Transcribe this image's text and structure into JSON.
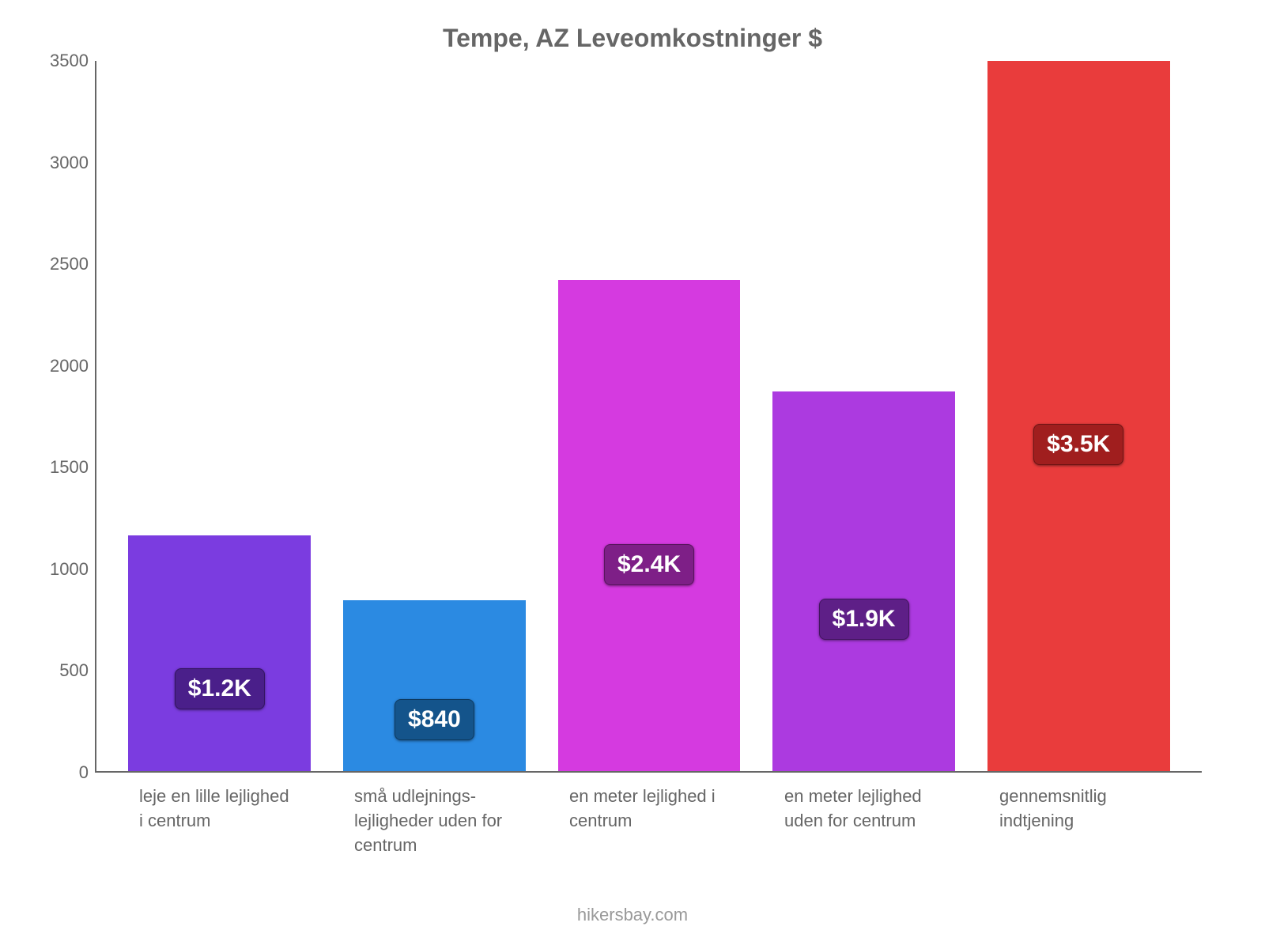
{
  "chart": {
    "type": "bar",
    "title": "Tempe, AZ Leveomkostninger $",
    "title_color": "#666666",
    "title_fontsize": 32,
    "background_color": "#ffffff",
    "axis_color": "#666666",
    "tick_color": "#666666",
    "tick_fontsize": 22,
    "ylim": [
      0,
      3500
    ],
    "ytick_step": 500,
    "yticks": [
      {
        "v": 0,
        "label": "0"
      },
      {
        "v": 500,
        "label": "500"
      },
      {
        "v": 1000,
        "label": "1000"
      },
      {
        "v": 1500,
        "label": "1500"
      },
      {
        "v": 2000,
        "label": "2000"
      },
      {
        "v": 2500,
        "label": "2500"
      },
      {
        "v": 3000,
        "label": "3000"
      },
      {
        "v": 3500,
        "label": "3500"
      }
    ],
    "bar_width_pct": 85,
    "bars": [
      {
        "category": "leje en lille lejlighed i centrum",
        "value": 1160,
        "display": "$1.2K",
        "bar_color": "#7b3ce0",
        "label_bg": "#4a1f8a",
        "label_pos_pct": 35
      },
      {
        "category": "små udlejnings-lejligheder uden for centrum",
        "value": 840,
        "display": "$840",
        "bar_color": "#2b8ae2",
        "label_bg": "#14548b",
        "label_pos_pct": 30
      },
      {
        "category": "en meter lejlighed i centrum",
        "value": 2420,
        "display": "$2.4K",
        "bar_color": "#d53ae0",
        "label_bg": "#7e1f87",
        "label_pos_pct": 42
      },
      {
        "category": "en meter lejlighed uden for centrum",
        "value": 1870,
        "display": "$1.9K",
        "bar_color": "#ac3ae0",
        "label_bg": "#5e1f87",
        "label_pos_pct": 40
      },
      {
        "category": "gennemsnitlig indtjening",
        "value": 3500,
        "display": "$3.5K",
        "bar_color": "#e93c3c",
        "label_bg": "#a01e1e",
        "label_pos_pct": 46
      }
    ],
    "footer": "hikersbay.com",
    "footer_color": "#999999"
  }
}
